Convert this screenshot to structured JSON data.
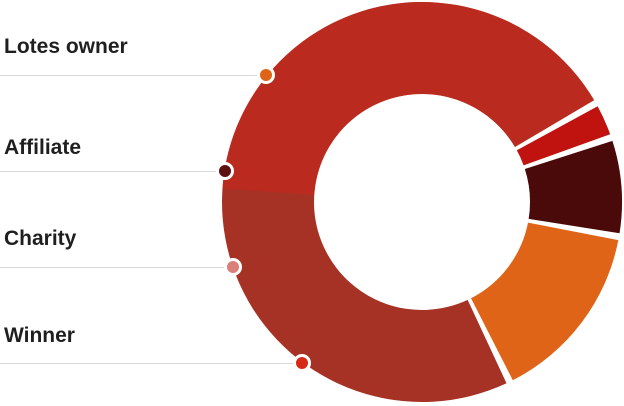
{
  "chart_data": {
    "type": "pie",
    "style": "donut",
    "labels": [
      "Lotes owner",
      "Affiliate",
      "Charity",
      "Winner"
    ],
    "values": [
      15,
      8,
      3,
      74
    ],
    "colors": [
      "#E06418",
      "#4A0A0A",
      "#C0130F",
      "#A63226"
    ],
    "marker_colors": [
      "#E06418",
      "#5C1010",
      "#D98078",
      "#D62A14"
    ],
    "remainder_color": "#CC2418",
    "title": ""
  }
}
